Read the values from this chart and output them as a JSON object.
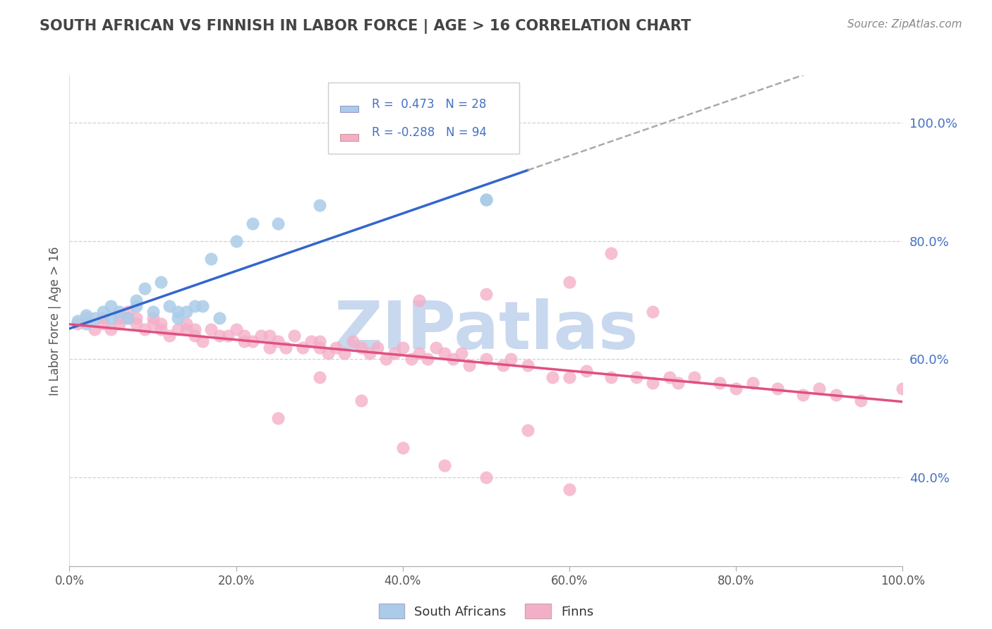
{
  "title": "SOUTH AFRICAN VS FINNISH IN LABOR FORCE | AGE > 16 CORRELATION CHART",
  "source": "Source: ZipAtlas.com",
  "ylabel": "In Labor Force | Age > 16",
  "legend_label1": "South Africans",
  "legend_label2": "Finns",
  "r1": 0.473,
  "n1": 28,
  "r2": -0.288,
  "n2": 94,
  "color1": "#aacce8",
  "color2": "#f4afc8",
  "line_color1": "#3366cc",
  "line_color2": "#e05080",
  "legend_text_color": "#4472c4",
  "title_color": "#444444",
  "watermark": "ZIPatlas",
  "watermark_color": "#c8d8ee",
  "background_color": "#ffffff",
  "grid_color": "#cccccc",
  "xlim": [
    0.0,
    1.0
  ],
  "ylim": [
    0.25,
    1.08
  ],
  "yticks": [
    0.4,
    0.6,
    0.8,
    1.0
  ],
  "xticks": [
    0.0,
    0.2,
    0.4,
    0.6,
    0.8,
    1.0
  ],
  "sa_x": [
    0.01,
    0.02,
    0.02,
    0.03,
    0.04,
    0.05,
    0.05,
    0.06,
    0.07,
    0.08,
    0.08,
    0.09,
    0.1,
    0.11,
    0.12,
    0.13,
    0.13,
    0.14,
    0.15,
    0.16,
    0.17,
    0.18,
    0.2,
    0.22,
    0.25,
    0.3,
    0.5,
    0.5
  ],
  "sa_y": [
    0.665,
    0.66,
    0.675,
    0.67,
    0.68,
    0.67,
    0.69,
    0.68,
    0.67,
    0.69,
    0.7,
    0.72,
    0.68,
    0.73,
    0.69,
    0.68,
    0.67,
    0.68,
    0.69,
    0.69,
    0.77,
    0.67,
    0.8,
    0.83,
    0.83,
    0.86,
    0.87,
    0.87
  ],
  "fi_x": [
    0.01,
    0.02,
    0.03,
    0.04,
    0.04,
    0.05,
    0.06,
    0.06,
    0.07,
    0.07,
    0.08,
    0.08,
    0.09,
    0.1,
    0.1,
    0.11,
    0.11,
    0.12,
    0.13,
    0.14,
    0.14,
    0.15,
    0.15,
    0.16,
    0.17,
    0.18,
    0.19,
    0.2,
    0.21,
    0.21,
    0.22,
    0.23,
    0.24,
    0.24,
    0.25,
    0.26,
    0.27,
    0.28,
    0.29,
    0.3,
    0.3,
    0.31,
    0.32,
    0.33,
    0.34,
    0.35,
    0.36,
    0.37,
    0.38,
    0.39,
    0.4,
    0.41,
    0.42,
    0.43,
    0.44,
    0.45,
    0.46,
    0.47,
    0.48,
    0.5,
    0.52,
    0.53,
    0.55,
    0.58,
    0.6,
    0.62,
    0.65,
    0.68,
    0.7,
    0.72,
    0.73,
    0.75,
    0.78,
    0.8,
    0.82,
    0.85,
    0.88,
    0.9,
    0.92,
    0.95,
    0.42,
    0.5,
    0.6,
    0.65,
    0.7,
    0.3,
    0.35,
    0.4,
    0.25,
    0.55,
    0.45,
    0.5,
    0.6,
    1.0
  ],
  "fi_y": [
    0.66,
    0.67,
    0.65,
    0.66,
    0.67,
    0.65,
    0.66,
    0.67,
    0.67,
    0.68,
    0.66,
    0.67,
    0.65,
    0.66,
    0.67,
    0.65,
    0.66,
    0.64,
    0.65,
    0.65,
    0.66,
    0.64,
    0.65,
    0.63,
    0.65,
    0.64,
    0.64,
    0.65,
    0.63,
    0.64,
    0.63,
    0.64,
    0.62,
    0.64,
    0.63,
    0.62,
    0.64,
    0.62,
    0.63,
    0.62,
    0.63,
    0.61,
    0.62,
    0.61,
    0.63,
    0.62,
    0.61,
    0.62,
    0.6,
    0.61,
    0.62,
    0.6,
    0.61,
    0.6,
    0.62,
    0.61,
    0.6,
    0.61,
    0.59,
    0.6,
    0.59,
    0.6,
    0.59,
    0.57,
    0.57,
    0.58,
    0.57,
    0.57,
    0.56,
    0.57,
    0.56,
    0.57,
    0.56,
    0.55,
    0.56,
    0.55,
    0.54,
    0.55,
    0.54,
    0.53,
    0.7,
    0.71,
    0.73,
    0.78,
    0.68,
    0.57,
    0.53,
    0.45,
    0.5,
    0.48,
    0.42,
    0.4,
    0.38,
    0.55
  ]
}
